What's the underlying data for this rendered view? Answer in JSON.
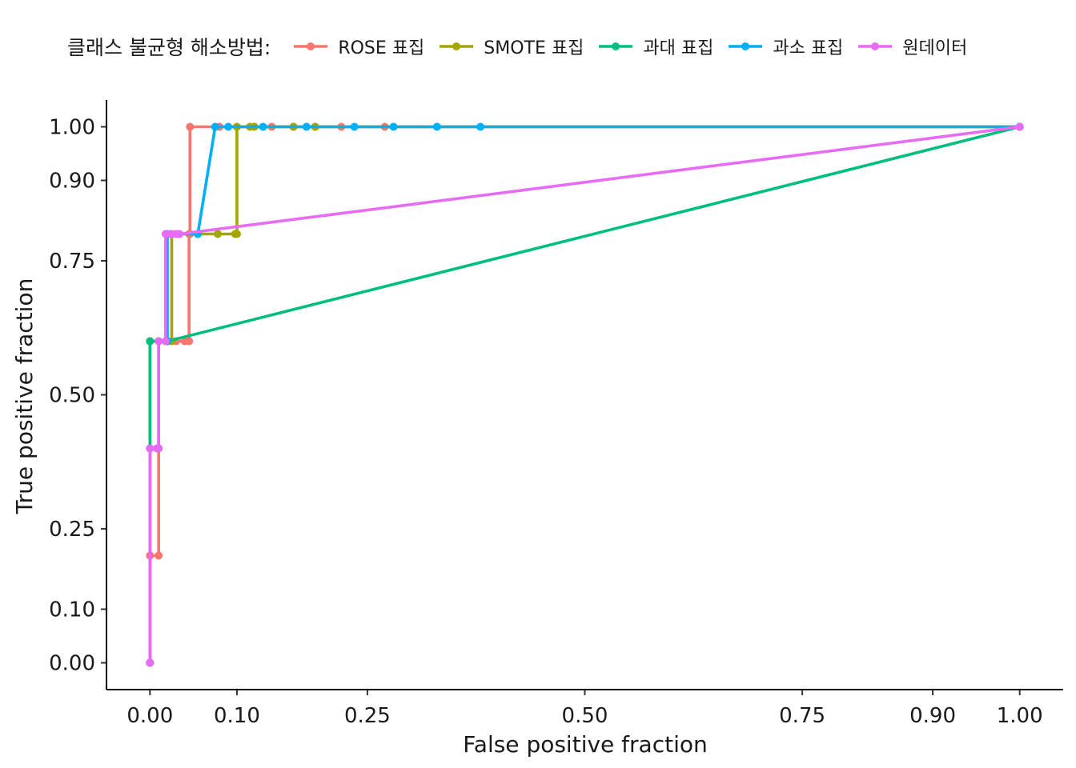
{
  "legend": {
    "title": "클래스 불균형 해소방법:"
  },
  "chart_data": {
    "type": "line",
    "xlabel": "False positive fraction",
    "ylabel": "True positive fraction",
    "xlim": [
      -0.05,
      1.05
    ],
    "ylim": [
      -0.05,
      1.05
    ],
    "x_ticks": [
      0.0,
      0.1,
      0.25,
      0.5,
      0.75,
      0.9,
      1.0
    ],
    "x_tick_labels": [
      "0.00",
      "0.10",
      "0.25",
      "0.50",
      "0.75",
      "0.90",
      "1.00"
    ],
    "y_ticks": [
      0.0,
      0.1,
      0.25,
      0.5,
      0.75,
      0.9,
      1.0
    ],
    "y_tick_labels": [
      "0.00",
      "0.10",
      "0.25",
      "0.50",
      "0.75",
      "0.90",
      "1.00"
    ],
    "legend_position": "top",
    "grid": false,
    "series": [
      {
        "name": "ROSE 표집",
        "color": "#F8766D",
        "points": [
          [
            0,
            0
          ],
          [
            0,
            0.4
          ],
          [
            0,
            0.2
          ],
          [
            0.01,
            0.2
          ],
          [
            0.01,
            0.6
          ],
          [
            0.02,
            0.6
          ],
          [
            0.03,
            0.6
          ],
          [
            0.04,
            0.6
          ],
          [
            0.045,
            0.6
          ],
          [
            0.045,
            0.8
          ],
          [
            0.046,
            0.8
          ],
          [
            0.046,
            1.0
          ],
          [
            0.08,
            1.0
          ],
          [
            0.12,
            1.0
          ],
          [
            0.14,
            1.0
          ],
          [
            0.165,
            1.0
          ],
          [
            0.19,
            1.0
          ],
          [
            0.22,
            1.0
          ],
          [
            0.27,
            1.0
          ],
          [
            1,
            1
          ]
        ]
      },
      {
        "name": "SMOTE 표집",
        "color": "#A3A500",
        "points": [
          [
            0,
            0
          ],
          [
            0,
            0.6
          ],
          [
            0.02,
            0.6
          ],
          [
            0.025,
            0.6
          ],
          [
            0.025,
            0.8
          ],
          [
            0.055,
            0.8
          ],
          [
            0.078,
            0.8
          ],
          [
            0.098,
            0.8
          ],
          [
            0.1,
            0.8
          ],
          [
            0.1,
            1.0
          ],
          [
            0.115,
            1.0
          ],
          [
            0.12,
            1.0
          ],
          [
            0.165,
            1.0
          ],
          [
            0.19,
            1.0
          ],
          [
            1,
            1
          ]
        ]
      },
      {
        "name": "과대 표집",
        "color": "#00BF7D",
        "points": [
          [
            0,
            0
          ],
          [
            0,
            0.6
          ],
          [
            0.02,
            0.6
          ],
          [
            1,
            1
          ]
        ]
      },
      {
        "name": "과소 표집",
        "color": "#00B0F6",
        "points": [
          [
            0,
            0
          ],
          [
            0,
            0.4
          ],
          [
            0.01,
            0.4
          ],
          [
            0.01,
            0.6
          ],
          [
            0.02,
            0.6
          ],
          [
            0.02,
            0.8
          ],
          [
            0.055,
            0.8
          ],
          [
            0.075,
            1.0
          ],
          [
            0.09,
            1.0
          ],
          [
            0.13,
            1.0
          ],
          [
            0.18,
            1.0
          ],
          [
            0.235,
            1.0
          ],
          [
            0.28,
            1.0
          ],
          [
            0.33,
            1.0
          ],
          [
            0.38,
            1.0
          ],
          [
            1,
            1
          ]
        ]
      },
      {
        "name": "원데이터",
        "color": "#E76BF3",
        "points": [
          [
            0,
            0
          ],
          [
            0,
            0.4
          ],
          [
            0.008,
            0.4
          ],
          [
            0.01,
            0.4
          ],
          [
            0.01,
            0.6
          ],
          [
            0.018,
            0.6
          ],
          [
            0.018,
            0.8
          ],
          [
            0.024,
            0.8
          ],
          [
            0.03,
            0.8
          ],
          [
            0.034,
            0.8
          ],
          [
            1,
            1
          ]
        ]
      }
    ]
  }
}
